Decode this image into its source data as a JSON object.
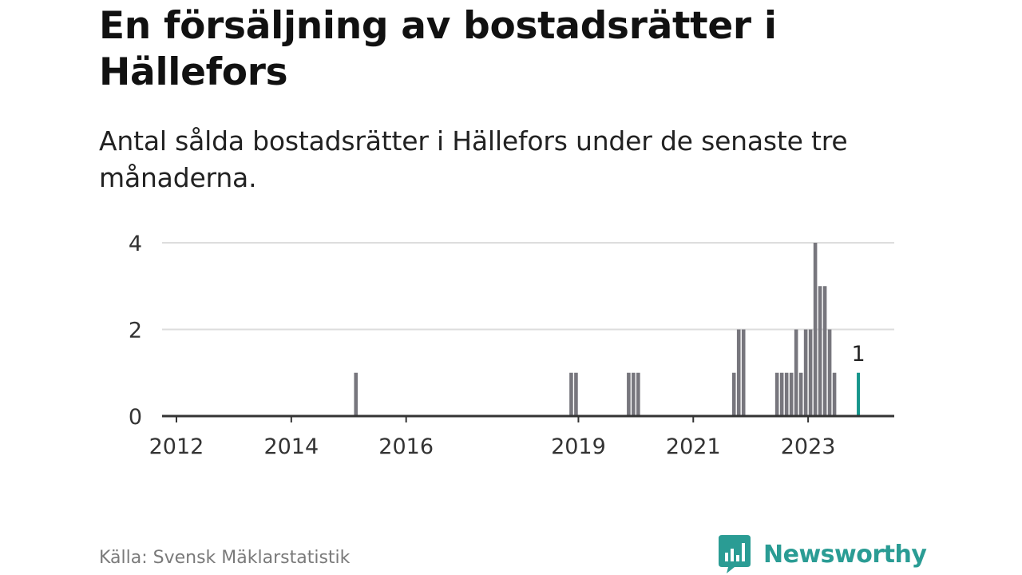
{
  "header": {
    "title": "En försäljning av bostadsrätter i Hällefors",
    "subtitle": "Antal sålda bostadsrätter i Hällefors under de senaste tre månaderna."
  },
  "footer": {
    "source": "Källa: Svensk Mäklarstatistik",
    "brand": "Newsworthy",
    "brand_icon": "bar-chart-bubble-icon"
  },
  "colors": {
    "bar": "#77767d",
    "highlight": "#16968c",
    "grid": "#dddddd",
    "axis": "#333333",
    "brand": "#2a9c94"
  },
  "chart_data": {
    "type": "bar",
    "xlabel": "",
    "ylabel": "",
    "ylim": [
      0,
      4
    ],
    "y_ticks": [
      0,
      2,
      4
    ],
    "x_ticks": [
      "2012",
      "2014",
      "2016",
      "2019",
      "2021",
      "2023"
    ],
    "x_range": [
      "2011-10",
      "2024-07"
    ],
    "grid": true,
    "highlight_label": "1",
    "values": [
      {
        "date": "2015-02",
        "value": 1
      },
      {
        "date": "2018-11",
        "value": 1
      },
      {
        "date": "2018-12",
        "value": 1
      },
      {
        "date": "2019-11",
        "value": 1
      },
      {
        "date": "2019-12",
        "value": 1
      },
      {
        "date": "2020-01",
        "value": 1
      },
      {
        "date": "2021-09",
        "value": 1
      },
      {
        "date": "2021-10",
        "value": 2
      },
      {
        "date": "2021-11",
        "value": 2
      },
      {
        "date": "2022-06",
        "value": 1
      },
      {
        "date": "2022-07",
        "value": 1
      },
      {
        "date": "2022-08",
        "value": 1
      },
      {
        "date": "2022-09",
        "value": 1
      },
      {
        "date": "2022-10",
        "value": 2
      },
      {
        "date": "2022-11",
        "value": 1
      },
      {
        "date": "2022-12",
        "value": 2
      },
      {
        "date": "2023-01",
        "value": 2
      },
      {
        "date": "2023-02",
        "value": 4
      },
      {
        "date": "2023-03",
        "value": 3
      },
      {
        "date": "2023-04",
        "value": 3
      },
      {
        "date": "2023-05",
        "value": 2
      },
      {
        "date": "2023-06",
        "value": 1
      },
      {
        "date": "2023-11",
        "value": 1,
        "highlight": true
      }
    ]
  }
}
